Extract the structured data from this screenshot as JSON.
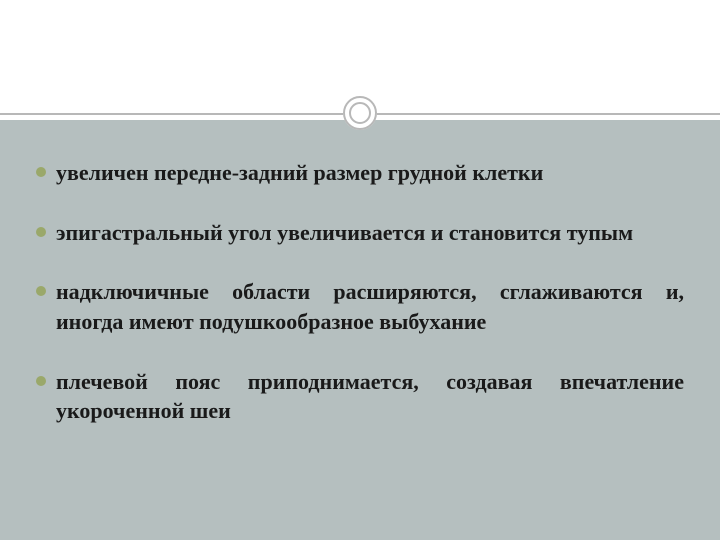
{
  "slide": {
    "background_top": "#ffffff",
    "background_body": "#b5bfbf",
    "divider_color": "#b8b8b8",
    "bullet_color": "#9aa86a",
    "text_color": "#1a1a1a",
    "font_family": "Georgia, Times New Roman, serif",
    "font_size_pt": 17,
    "font_weight": "bold",
    "text_align": "justify",
    "bullets": [
      {
        "text": "увеличен передне-задний размер грудной клетки"
      },
      {
        "text": "эпигастральный угол увеличивается и становится тупым"
      },
      {
        "text": "надключичные области расширяются, сглаживаются и, иногда имеют подушкообразное выбухание"
      },
      {
        "text": "плечевой пояс приподнимается, создавая впечатление укороченной шеи"
      }
    ]
  }
}
